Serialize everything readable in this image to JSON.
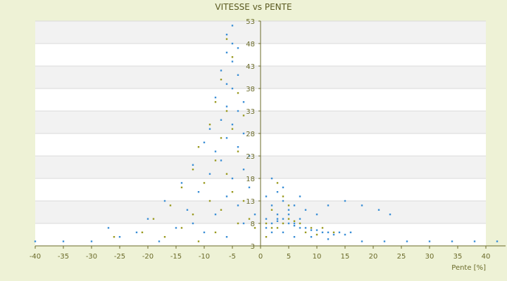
{
  "chart_data": {
    "type": "scatter",
    "title": "VITESSE vs PENTE",
    "xlabel": "Pente [%]",
    "ylabel": "",
    "xlim": [
      -40,
      40
    ],
    "ylim": [
      3,
      53
    ],
    "x_ticks": [
      -40,
      -35,
      -30,
      -25,
      -20,
      -15,
      -10,
      -5,
      0,
      5,
      10,
      15,
      20,
      25,
      30,
      35,
      40
    ],
    "y_ticks": [
      3,
      8,
      13,
      18,
      23,
      28,
      33,
      38,
      43,
      48,
      53
    ],
    "grid": true,
    "legend": "none",
    "colors": {
      "background": "#eef2d6",
      "plot_band_light": "#ffffff",
      "plot_band_dark": "#f2f2f2",
      "axis": "#6b6b2a",
      "series_blue": "#3b8fd6",
      "series_olive": "#9a9a20"
    },
    "series": [
      {
        "color": "#3b8fd6",
        "points": [
          [
            -5,
            52
          ],
          [
            -6,
            50
          ],
          [
            -5,
            48
          ],
          [
            -4,
            47
          ],
          [
            -6,
            46
          ],
          [
            -5,
            44
          ],
          [
            -7,
            42
          ],
          [
            -4,
            41
          ],
          [
            -6,
            39
          ],
          [
            -5,
            38
          ],
          [
            -8,
            36
          ],
          [
            -3,
            35
          ],
          [
            -6,
            34
          ],
          [
            -4,
            33
          ],
          [
            -7,
            31
          ],
          [
            -5,
            30
          ],
          [
            -9,
            29
          ],
          [
            -3,
            28
          ],
          [
            -6,
            27
          ],
          [
            -10,
            26
          ],
          [
            -4,
            25
          ],
          [
            -8,
            24
          ],
          [
            -2,
            23
          ],
          [
            -7,
            22
          ],
          [
            -12,
            21
          ],
          [
            -3,
            20
          ],
          [
            -9,
            19
          ],
          [
            -5,
            18
          ],
          [
            -14,
            17
          ],
          [
            -2,
            16
          ],
          [
            -11,
            15
          ],
          [
            -6,
            14
          ],
          [
            -17,
            13
          ],
          [
            -4,
            12
          ],
          [
            -13,
            11
          ],
          [
            -8,
            10
          ],
          [
            -20,
            9
          ],
          [
            -3,
            8
          ],
          [
            -15,
            7
          ],
          [
            -10,
            6
          ],
          [
            -25,
            5
          ],
          [
            -6,
            5
          ],
          [
            -18,
            4
          ],
          [
            -30,
            4
          ],
          [
            -35,
            4
          ],
          [
            -40,
            4
          ],
          [
            -22,
            6
          ],
          [
            -27,
            7
          ],
          [
            -12,
            8
          ],
          [
            -1,
            10
          ],
          [
            1,
            9
          ],
          [
            2,
            8
          ],
          [
            3,
            8.5
          ],
          [
            4,
            9
          ],
          [
            5,
            8
          ],
          [
            6,
            7.5
          ],
          [
            7,
            7
          ],
          [
            8,
            7
          ],
          [
            9,
            6.5
          ],
          [
            10,
            6.5
          ],
          [
            11,
            6
          ],
          [
            12,
            6
          ],
          [
            13,
            5.5
          ],
          [
            14,
            6
          ],
          [
            15,
            5.5
          ],
          [
            16,
            6
          ],
          [
            3,
            10
          ],
          [
            5,
            11
          ],
          [
            2,
            12
          ],
          [
            4,
            13
          ],
          [
            6,
            12
          ],
          [
            8,
            11
          ],
          [
            10,
            10
          ],
          [
            1,
            14
          ],
          [
            3,
            15
          ],
          [
            7,
            14
          ],
          [
            12,
            12
          ],
          [
            15,
            13
          ],
          [
            18,
            12
          ],
          [
            21,
            11
          ],
          [
            23,
            10
          ],
          [
            2,
            18
          ],
          [
            4,
            16
          ],
          [
            1,
            7
          ],
          [
            2,
            6
          ],
          [
            4,
            6
          ],
          [
            6,
            5
          ],
          [
            9,
            5
          ],
          [
            12,
            4.5
          ],
          [
            18,
            4
          ],
          [
            22,
            4
          ],
          [
            26,
            4
          ],
          [
            30,
            4
          ],
          [
            34,
            4
          ],
          [
            38,
            4
          ],
          [
            42,
            4
          ],
          [
            5,
            10
          ],
          [
            3,
            9
          ],
          [
            7,
            9
          ],
          [
            6,
            8
          ]
        ]
      },
      {
        "color": "#9a9a20",
        "points": [
          [
            -6,
            49
          ],
          [
            -5,
            45
          ],
          [
            -7,
            40
          ],
          [
            -4,
            37
          ],
          [
            -8,
            35
          ],
          [
            -6,
            33
          ],
          [
            -3,
            32
          ],
          [
            -9,
            30
          ],
          [
            -5,
            29
          ],
          [
            -7,
            27
          ],
          [
            -11,
            25
          ],
          [
            -4,
            24
          ],
          [
            -8,
            22
          ],
          [
            -12,
            20
          ],
          [
            -6,
            19
          ],
          [
            -10,
            17
          ],
          [
            -14,
            16
          ],
          [
            -5,
            15
          ],
          [
            -9,
            13
          ],
          [
            -16,
            12
          ],
          [
            -7,
            11
          ],
          [
            -12,
            10
          ],
          [
            -19,
            9
          ],
          [
            -4,
            8
          ],
          [
            -14,
            7
          ],
          [
            -21,
            6
          ],
          [
            -8,
            6
          ],
          [
            -17,
            5
          ],
          [
            -26,
            5
          ],
          [
            -11,
            4
          ],
          [
            -3,
            13
          ],
          [
            -2,
            9
          ],
          [
            -1,
            7
          ],
          [
            1,
            8
          ],
          [
            2,
            7
          ],
          [
            3,
            7
          ],
          [
            4,
            8
          ],
          [
            5,
            9
          ],
          [
            6,
            8.5
          ],
          [
            7,
            8
          ],
          [
            8,
            6
          ],
          [
            9,
            7
          ],
          [
            10,
            5.5
          ],
          [
            11,
            7
          ],
          [
            13,
            6
          ],
          [
            2,
            11
          ],
          [
            4,
            14
          ],
          [
            3,
            17
          ],
          [
            5,
            12
          ],
          [
            1,
            5
          ]
        ]
      }
    ]
  }
}
